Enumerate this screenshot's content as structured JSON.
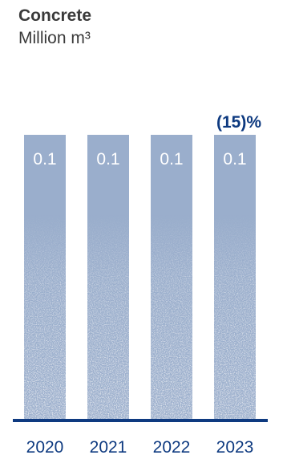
{
  "chart_data": {
    "type": "bar",
    "title": "Concrete",
    "subtitle": "Million m³",
    "categories": [
      "2020",
      "2021",
      "2022",
      "2023"
    ],
    "values": [
      0.1,
      0.1,
      0.1,
      0.1
    ],
    "value_labels": [
      "0.1",
      "0.1",
      "0.1",
      "0.1"
    ],
    "annotation": "(15)%",
    "annotation_category": "2023",
    "ylim": [
      0,
      0.1
    ],
    "grid": false,
    "colors": {
      "bar": "#9aaecc",
      "baseline": "#0e3a80",
      "annotation": "#0e3a80",
      "value_label": "#ffffff",
      "tick_label": "#0e3a80"
    }
  }
}
